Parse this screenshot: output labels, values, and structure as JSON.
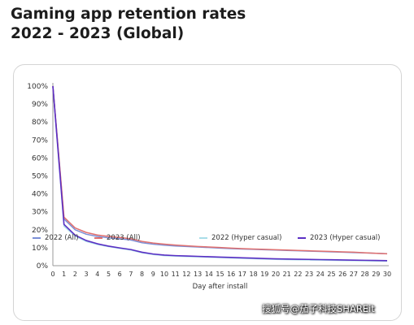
{
  "title_line1": "Gaming app retention rates",
  "title_line2": "2022 - 2023 (Global)",
  "watermark": "搜狐号@茄子科技SHAREit",
  "chart_data": {
    "type": "line",
    "xlabel": "Day after install",
    "ylabel": "",
    "x": [
      0,
      1,
      2,
      3,
      4,
      5,
      6,
      7,
      8,
      9,
      10,
      11,
      12,
      13,
      14,
      15,
      16,
      17,
      18,
      19,
      20,
      21,
      22,
      23,
      24,
      25,
      26,
      27,
      28,
      29,
      30
    ],
    "xlim": [
      0,
      30
    ],
    "ylim": [
      0,
      100
    ],
    "y_ticks": [
      0,
      10,
      20,
      30,
      40,
      50,
      60,
      70,
      80,
      90,
      100
    ],
    "y_tick_labels": [
      "0%",
      "10%",
      "20%",
      "30%",
      "40%",
      "50%",
      "60%",
      "70%",
      "80%",
      "90%",
      "100%"
    ],
    "x_tick_labels": [
      "0",
      "1",
      "2",
      "3",
      "4",
      "5",
      "6",
      "7",
      "8",
      "9",
      "10",
      "11",
      "12",
      "13",
      "14",
      "15",
      "16",
      "17",
      "18",
      "19",
      "20",
      "21",
      "22",
      "23",
      "24",
      "25",
      "26",
      "27",
      "28",
      "29",
      "30"
    ],
    "grid": false,
    "legend_position": "bottom",
    "series": [
      {
        "name": "2022 (All)",
        "color": "#7b8fd6",
        "values": [
          100,
          26,
          20,
          17.5,
          16.3,
          15.5,
          15,
          14.3,
          12.8,
          12,
          11.4,
          11,
          10.7,
          10.4,
          10.1,
          9.8,
          9.5,
          9.3,
          9.1,
          8.9,
          8.7,
          8.5,
          8.3,
          8.1,
          7.9,
          7.7,
          7.5,
          7.3,
          7.1,
          6.9,
          6.7
        ]
      },
      {
        "name": "2023 (All)",
        "color": "#e0706f",
        "values": [
          100,
          27,
          21,
          18.5,
          17.1,
          16.3,
          15.7,
          15,
          13.5,
          12.6,
          12,
          11.5,
          11.1,
          10.7,
          10.4,
          10.1,
          9.8,
          9.5,
          9.3,
          9.1,
          8.9,
          8.7,
          8.5,
          8.3,
          8.1,
          7.9,
          7.7,
          7.5,
          7.2,
          6.9,
          6.6
        ]
      },
      {
        "name": "2022 (Hyper casual)",
        "color": "#a9dde8",
        "values": [
          100,
          22,
          16.5,
          13.5,
          11.8,
          10.6,
          9.6,
          8.7,
          7.2,
          6.2,
          5.6,
          5.3,
          5.1,
          4.9,
          4.7,
          4.5,
          4.3,
          4.1,
          3.9,
          3.7,
          3.5,
          3.4,
          3.3,
          3.2,
          3.1,
          3,
          2.9,
          2.8,
          2.7,
          2.6,
          2.5
        ]
      },
      {
        "name": "2023 (Hyper casual)",
        "color": "#5b2fc4",
        "values": [
          100,
          23,
          17,
          14,
          12.2,
          10.9,
          9.9,
          9,
          7.5,
          6.5,
          5.9,
          5.6,
          5.4,
          5.2,
          5,
          4.8,
          4.6,
          4.4,
          4.2,
          4,
          3.8,
          3.7,
          3.6,
          3.5,
          3.4,
          3.3,
          3.2,
          3.1,
          3,
          2.9,
          2.8
        ]
      }
    ]
  }
}
